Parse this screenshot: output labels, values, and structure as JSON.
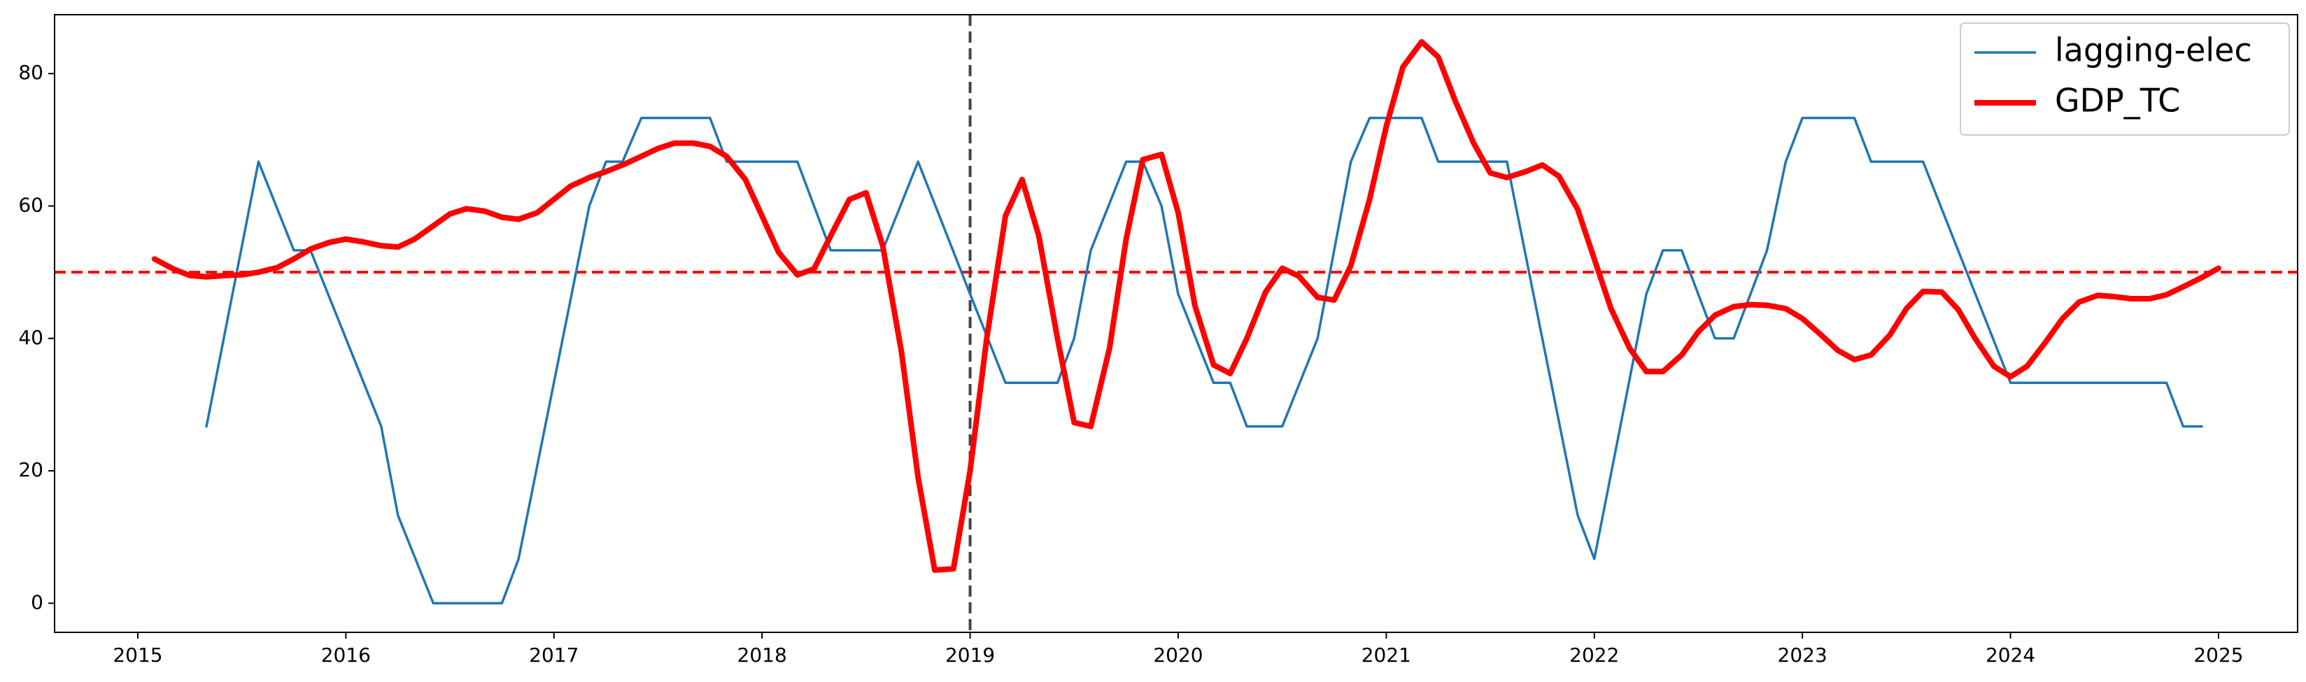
{
  "chart_data": {
    "type": "line",
    "series": [
      {
        "name": "lagging-elec",
        "color": "#1f77b4",
        "width": 3.5,
        "x": [
          2015.33,
          2015.58,
          2015.75,
          2015.83,
          2016.17,
          2016.25,
          2016.42,
          2016.75,
          2016.83,
          2017.17,
          2017.25,
          2017.33,
          2017.42,
          2017.75,
          2017.83,
          2018.17,
          2018.33,
          2018.58,
          2018.75,
          2019.0,
          2019.17,
          2019.42,
          2019.5,
          2019.58,
          2019.75,
          2019.83,
          2019.92,
          2020.0,
          2020.17,
          2020.25,
          2020.33,
          2020.5,
          2020.67,
          2020.83,
          2020.92,
          2021.17,
          2021.25,
          2021.58,
          2021.75,
          2021.92,
          2022.0,
          2022.25,
          2022.33,
          2022.42,
          2022.58,
          2022.67,
          2022.83,
          2022.92,
          2023.0,
          2023.25,
          2023.33,
          2023.58,
          2024.0,
          2024.75,
          2024.83,
          2024.92
        ],
        "values": [
          26.7,
          66.7,
          53.3,
          53.3,
          26.7,
          13.3,
          0,
          0,
          6.7,
          60,
          66.7,
          66.7,
          73.3,
          73.3,
          66.7,
          66.7,
          53.3,
          53.3,
          66.7,
          46.7,
          33.3,
          33.3,
          40,
          53.3,
          66.7,
          66.7,
          60,
          46.7,
          33.3,
          33.3,
          26.7,
          26.7,
          40,
          66.7,
          73.3,
          73.3,
          66.7,
          66.7,
          40,
          13.3,
          6.7,
          46.7,
          53.3,
          53.3,
          40,
          40,
          53.3,
          66.7,
          73.3,
          73.3,
          66.7,
          66.7,
          33.3,
          33.3,
          26.7,
          26.7
        ]
      },
      {
        "name": "GDP_TC",
        "color": "#ff0000",
        "width": 8,
        "x": [
          2015.08,
          2015.17,
          2015.25,
          2015.33,
          2015.42,
          2015.5,
          2015.58,
          2015.67,
          2015.75,
          2015.83,
          2015.92,
          2016.0,
          2016.08,
          2016.17,
          2016.25,
          2016.33,
          2016.42,
          2016.5,
          2016.58,
          2016.67,
          2016.75,
          2016.83,
          2016.92,
          2017.0,
          2017.08,
          2017.17,
          2017.25,
          2017.33,
          2017.42,
          2017.5,
          2017.58,
          2017.67,
          2017.75,
          2017.83,
          2017.92,
          2018.0,
          2018.08,
          2018.17,
          2018.25,
          2018.33,
          2018.42,
          2018.5,
          2018.58,
          2018.67,
          2018.75,
          2018.83,
          2018.92,
          2019.0,
          2019.08,
          2019.17,
          2019.25,
          2019.33,
          2019.42,
          2019.5,
          2019.58,
          2019.67,
          2019.75,
          2019.83,
          2019.92,
          2020.0,
          2020.08,
          2020.17,
          2020.25,
          2020.33,
          2020.42,
          2020.5,
          2020.58,
          2020.67,
          2020.75,
          2020.83,
          2020.92,
          2021.0,
          2021.08,
          2021.17,
          2021.25,
          2021.33,
          2021.42,
          2021.5,
          2021.58,
          2021.67,
          2021.75,
          2021.83,
          2021.92,
          2022.0,
          2022.08,
          2022.17,
          2022.25,
          2022.33,
          2022.42,
          2022.5,
          2022.58,
          2022.67,
          2022.75,
          2022.83,
          2022.92,
          2023.0,
          2023.08,
          2023.17,
          2023.25,
          2023.33,
          2023.42,
          2023.5,
          2023.58,
          2023.67,
          2023.75,
          2023.83,
          2023.92,
          2024.0,
          2024.08,
          2024.17,
          2024.25,
          2024.33,
          2024.42,
          2024.5,
          2024.58,
          2024.67,
          2024.75,
          2024.83,
          2024.92,
          2025.0
        ],
        "values": [
          52,
          50.5,
          49.5,
          49.3,
          49.5,
          49.6,
          50,
          50.7,
          52,
          53.5,
          54.5,
          55,
          54.6,
          54,
          53.8,
          55,
          57,
          58.8,
          59.6,
          59.2,
          58.3,
          58,
          59,
          61,
          63,
          64.3,
          65.2,
          66.2,
          67.5,
          68.7,
          69.5,
          69.5,
          69,
          67.5,
          64,
          58.5,
          53,
          49.6,
          50.5,
          55.5,
          61,
          62,
          54,
          38,
          19,
          5,
          5.2,
          20,
          40,
          58.5,
          64,
          55.5,
          40,
          27.3,
          26.7,
          38.5,
          55,
          67,
          67.8,
          59,
          45,
          36,
          34.7,
          40,
          47,
          50.6,
          49.4,
          46.2,
          45.8,
          51,
          61,
          72,
          81,
          84.8,
          82.5,
          76,
          69.5,
          65,
          64.3,
          65.2,
          66.2,
          64.5,
          59.5,
          52,
          44.5,
          38.5,
          35,
          35,
          37.5,
          41,
          43.5,
          44.8,
          45.1,
          45,
          44.5,
          43,
          40.8,
          38.2,
          36.8,
          37.5,
          40.5,
          44.5,
          47.1,
          47,
          44.3,
          40,
          35.8,
          34.2,
          35.8,
          39.5,
          43,
          45.5,
          46.5,
          46.3,
          46,
          46,
          46.6,
          47.8,
          49.2,
          50.6
        ]
      }
    ],
    "xlim": [
      2014.6,
      2025.38
    ],
    "xticks": [
      2015,
      2016,
      2017,
      2018,
      2019,
      2020,
      2021,
      2022,
      2023,
      2024,
      2025
    ],
    "ylim": [
      -4.4,
      88.9
    ],
    "yticks": [
      0,
      20,
      40,
      60,
      80
    ],
    "hline": {
      "value": 50,
      "color": "#ff0000"
    },
    "vline": {
      "value": 2019,
      "color": "#444444"
    },
    "legend": "upper right"
  }
}
